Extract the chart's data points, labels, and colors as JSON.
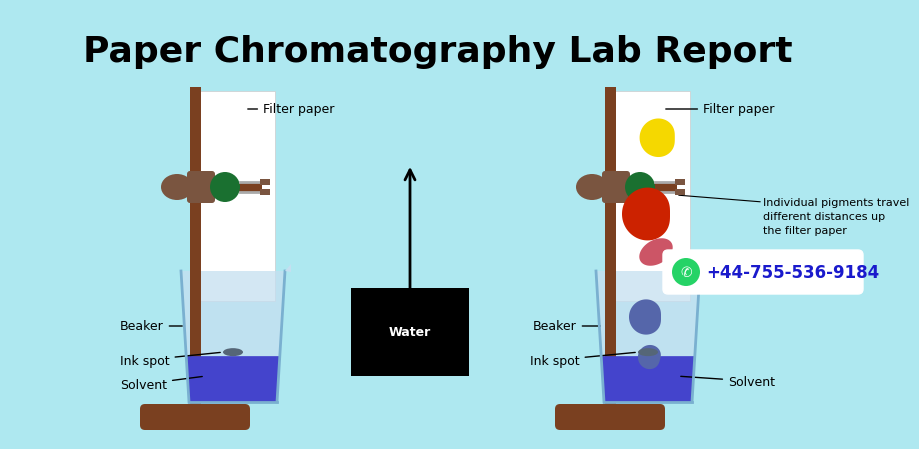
{
  "title": "Paper Chromatography Lab Report",
  "bg_color": "#aee8f0",
  "title_color": "#000000",
  "title_fontsize": 26,
  "stand_color": "#7a4020",
  "clamp_body_color": "#6b3515",
  "clamp_wing_color": "#7a5540",
  "circle_color": "#1a7030",
  "paper_color": "#eef2ff",
  "beaker_fill": "#c5dff0",
  "solvent_color": "#4444cc",
  "ink_color": "#556677",
  "label_fontsize": 9,
  "whatsapp_number": "+44-755-536-9184",
  "annotation_text": "Individual pigments travel\ndifferent distances up\nthe filter paper",
  "water_label": "Water",
  "pin_color": "#888888",
  "wire_color": "#aaaaaa"
}
